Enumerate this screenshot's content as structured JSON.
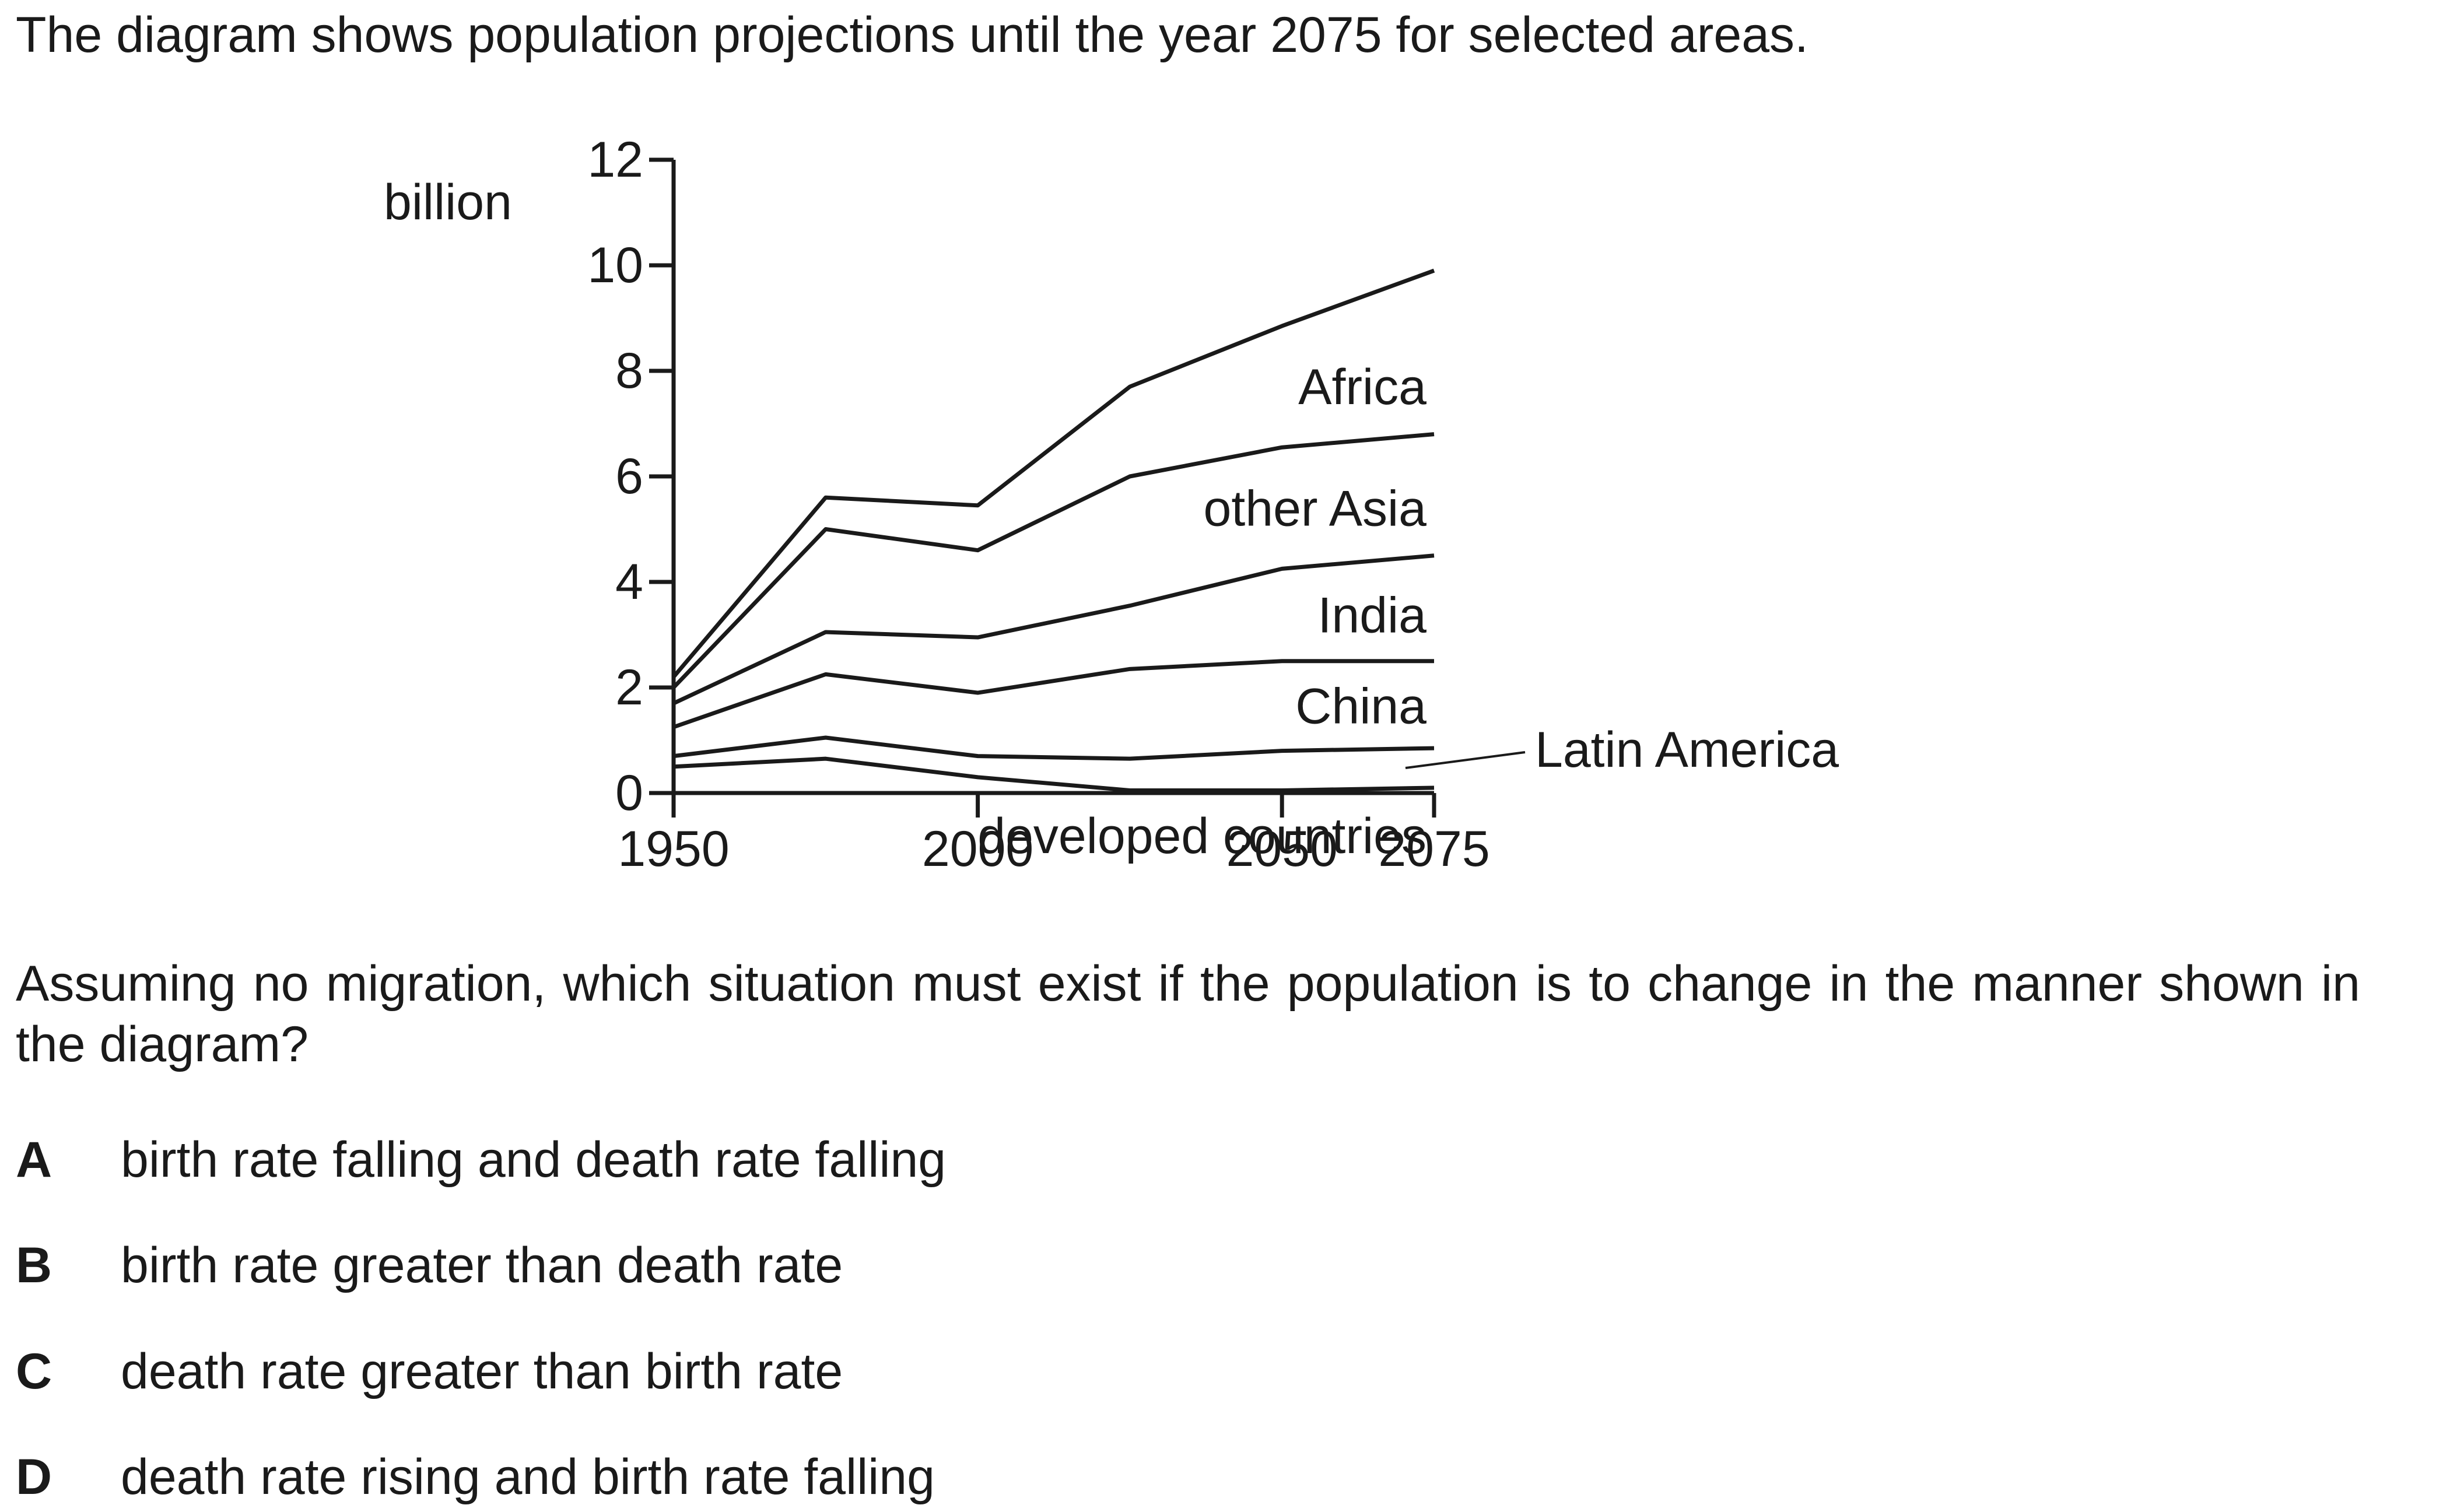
{
  "intro_text": "The diagram shows population projections until the year 2075 for selected areas.",
  "question_text": "Assuming no migration, which situation must exist if the population is to change in the manner shown in the diagram?",
  "options": [
    {
      "letter": "A",
      "text": "birth rate falling and death rate falling"
    },
    {
      "letter": "B",
      "text": "birth rate greater than death rate"
    },
    {
      "letter": "C",
      "text": "death rate greater than birth rate"
    },
    {
      "letter": "D",
      "text": "death rate rising and birth rate falling"
    }
  ],
  "chart_data": {
    "type": "area",
    "stacked": true,
    "ylabel": "billion",
    "xlabel": "",
    "title": "",
    "xlim": [
      1950,
      2075
    ],
    "ylim": [
      0,
      12
    ],
    "xticks": [
      1950,
      2000,
      2050,
      2075
    ],
    "yticks": [
      0,
      2,
      4,
      6,
      8,
      10,
      12
    ],
    "x": [
      1950,
      1975,
      2000,
      2025,
      2050,
      2075
    ],
    "series": [
      {
        "name": "developed countries",
        "values": [
          0.5,
          0.65,
          0.3,
          0.05,
          0.05,
          0.1
        ]
      },
      {
        "name": "Latin America",
        "values": [
          0.2,
          0.4,
          0.4,
          0.6,
          0.75,
          0.75
        ]
      },
      {
        "name": "China",
        "values": [
          0.55,
          1.2,
          1.2,
          1.7,
          1.7,
          1.65
        ]
      },
      {
        "name": "India",
        "values": [
          0.45,
          0.8,
          1.05,
          1.2,
          1.75,
          2.0
        ]
      },
      {
        "name": "other Asia",
        "values": [
          0.3,
          1.95,
          1.65,
          2.45,
          2.3,
          2.3
        ]
      },
      {
        "name": "Africa",
        "values": [
          0.2,
          0.6,
          0.85,
          1.7,
          2.3,
          3.1
        ]
      }
    ],
    "grid": false,
    "legend": "inline labels"
  }
}
